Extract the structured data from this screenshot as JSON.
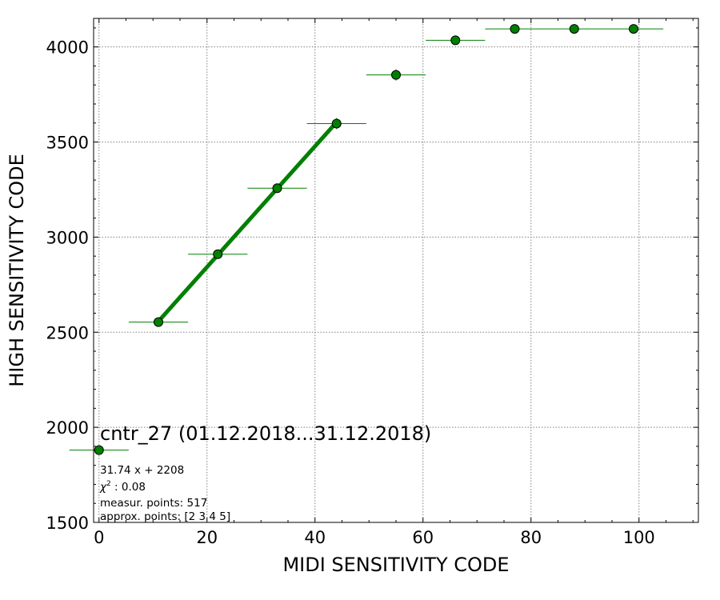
{
  "chart_data": {
    "type": "scatter",
    "title": "cntr_27 (01.12.2018...31.12.2018)",
    "xlabel": "MIDI SENSITIVITY CODE",
    "ylabel": "HIGH SENSITIVITY CODE",
    "xlim": [
      -1,
      111
    ],
    "ylim": [
      1500,
      4150
    ],
    "xticks": [
      0,
      20,
      40,
      60,
      80,
      100
    ],
    "yticks": [
      1500,
      2000,
      2500,
      3000,
      3500,
      4000
    ],
    "grid": true,
    "marker_color": "#008000",
    "marker_edge_color": "#000000",
    "points": [
      {
        "x": 0,
        "y": 1880,
        "xerr": 5.5,
        "yerr": 8
      },
      {
        "x": 11,
        "y": 2553,
        "xerr": 5.5,
        "yerr": 8
      },
      {
        "x": 22,
        "y": 2910,
        "xerr": 5.5,
        "yerr": 8
      },
      {
        "x": 33,
        "y": 3257,
        "xerr": 5.5,
        "yerr": 8
      },
      {
        "x": 44,
        "y": 3597,
        "xerr": 5.5,
        "yerr": 30
      },
      {
        "x": 55,
        "y": 3853,
        "xerr": 5.5,
        "yerr": 30
      },
      {
        "x": 66,
        "y": 4035,
        "xerr": 5.5,
        "yerr": 8
      },
      {
        "x": 77,
        "y": 4095,
        "xerr": 5.5,
        "yerr": 5
      },
      {
        "x": 88,
        "y": 4095,
        "xerr": 5.5,
        "yerr": 5
      },
      {
        "x": 99,
        "y": 4095,
        "xerr": 5.5,
        "yerr": 5
      }
    ],
    "fit": {
      "slope": 31.74,
      "intercept": 2208,
      "x_range": [
        11,
        44
      ],
      "color": "#008000"
    },
    "annotations": [
      "31.74 x + 2208",
      "0.08",
      "measur. points: 517",
      "approx. points: [2 3 4 5]"
    ],
    "chi_label": "χ"
  }
}
